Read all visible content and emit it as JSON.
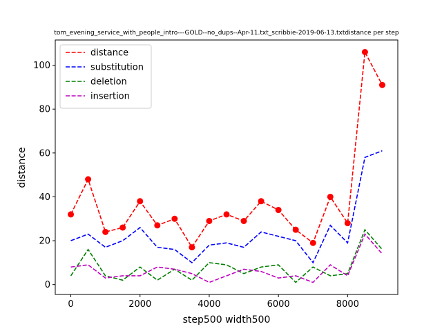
{
  "chart_data": {
    "type": "line",
    "title": "tom_evening_service_with_people_intro---GOLD--no_dups--Apr-11.txt_scribbie-2019-06-13.txtdistance per step",
    "xlabel": "step500 width500",
    "ylabel": "distance",
    "xlim": [
      -450,
      9450
    ],
    "ylim": [
      -4.5,
      111.5
    ],
    "xticks": [
      0,
      2000,
      4000,
      6000,
      8000
    ],
    "yticks": [
      0,
      20,
      40,
      60,
      80,
      100
    ],
    "grid": false,
    "legend_position": "upper-left",
    "x": [
      0,
      500,
      1000,
      1500,
      2000,
      2500,
      3000,
      3500,
      4000,
      4500,
      5000,
      5500,
      6000,
      6500,
      7000,
      7500,
      8000,
      8500,
      9000
    ],
    "series": [
      {
        "name": "distance",
        "color": "#ff0000",
        "linestyle": "dashed",
        "markers": true,
        "values": [
          32,
          48,
          24,
          26,
          38,
          27,
          30,
          17,
          29,
          32,
          29,
          38,
          34,
          25,
          19,
          40,
          28,
          106,
          91
        ]
      },
      {
        "name": "substitution",
        "color": "#0000ff",
        "linestyle": "dashed",
        "markers": false,
        "values": [
          20,
          23,
          17,
          20,
          26,
          17,
          16,
          10,
          18,
          19,
          17,
          24,
          22,
          20,
          10,
          27,
          19,
          58,
          61
        ]
      },
      {
        "name": "deletion",
        "color": "#008000",
        "linestyle": "dashed",
        "markers": false,
        "values": [
          4,
          16,
          4,
          2,
          8,
          2,
          7,
          2,
          10,
          9,
          5,
          8,
          9,
          1,
          8,
          4,
          5,
          25,
          16
        ]
      },
      {
        "name": "insertion",
        "color": "#bf00bf",
        "linestyle": "dashed",
        "markers": false,
        "values": [
          8,
          9,
          3,
          4,
          4,
          8,
          7,
          5,
          1,
          4,
          7,
          6,
          3,
          4,
          1,
          9,
          4,
          23,
          14
        ]
      }
    ]
  }
}
